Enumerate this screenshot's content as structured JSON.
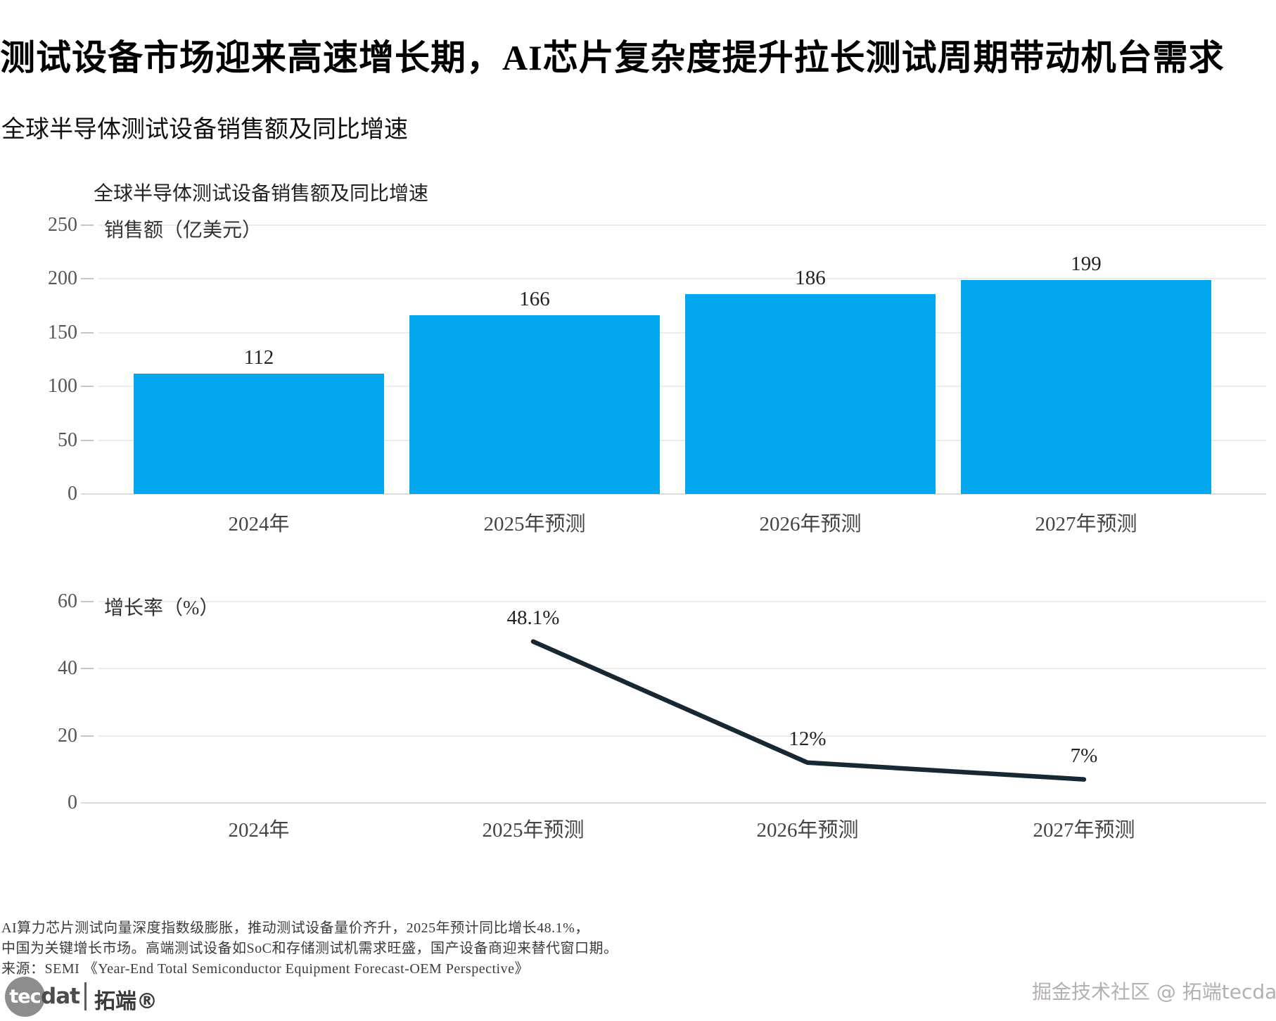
{
  "page": {
    "title": "测试设备市场迎来高速增长期，AI芯片复杂度提升拉长测试周期带动机台需求",
    "subtitle": "全球半导体测试设备销售额及同比增速"
  },
  "chart": {
    "title": "全球半导体测试设备销售额及同比增速",
    "sales_axis_label": "销售额（亿美元）",
    "growth_axis_label": "增长率（%）",
    "bar_color": "#02a7ee",
    "line_color": "#182833"
  },
  "chart_data": [
    {
      "type": "bar",
      "title": "全球半导体测试设备销售额及同比增速",
      "categories": [
        "2024年",
        "2025年预测",
        "2026年预测",
        "2027年预测"
      ],
      "values": [
        112,
        166,
        186,
        199
      ],
      "data_labels": [
        "112",
        "166",
        "186",
        "199"
      ],
      "xlabel": "",
      "ylabel": "销售额（亿美元）",
      "ylim": [
        0,
        250
      ],
      "yticks": [
        0,
        50,
        100,
        150,
        200,
        250
      ],
      "bar_color": "#02a7ee",
      "grid": true,
      "legend_position": "none"
    },
    {
      "type": "line",
      "categories": [
        "2024年",
        "2025年预测",
        "2026年预测",
        "2027年预测"
      ],
      "values": [
        null,
        48.1,
        12,
        7
      ],
      "data_labels": [
        null,
        "48.1%",
        "12%",
        "7%"
      ],
      "xlabel": "",
      "ylabel": "增长率（%）",
      "ylim": [
        0,
        60
      ],
      "yticks": [
        0,
        20,
        40,
        60
      ],
      "line_color": "#182833",
      "grid": true,
      "legend_position": "none"
    }
  ],
  "footer": {
    "note_line1": "AI算力芯片测试向量深度指数级膨胀，推动测试设备量价齐升，2025年预计同比增长48.1%，",
    "note_line2": "中国为关键增长市场。高端测试设备如SoC和存储测试机需求旺盛，国产设备商迎来替代窗口期。",
    "source": "来源：SEMI 《Year-End Total Semiconductor Equipment Forecast-OEM Perspective》",
    "logo": {
      "tec": "tec",
      "dat": "dat",
      "brand": "拓端®"
    },
    "watermark": "掘金技术社区 @ 拓端tecdat"
  }
}
